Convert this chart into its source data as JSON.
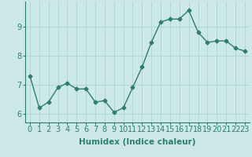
{
  "x": [
    0,
    1,
    2,
    3,
    4,
    5,
    6,
    7,
    8,
    9,
    10,
    11,
    12,
    13,
    14,
    15,
    16,
    17,
    18,
    19,
    20,
    21,
    22,
    23
  ],
  "y": [
    7.3,
    6.2,
    6.4,
    6.9,
    7.05,
    6.85,
    6.85,
    6.4,
    6.45,
    6.05,
    6.2,
    6.9,
    7.6,
    8.45,
    9.15,
    9.25,
    9.25,
    9.55,
    8.8,
    8.45,
    8.5,
    8.5,
    8.25,
    8.15
  ],
  "line_color": "#2e7d6e",
  "bg_color": "#cce9e8",
  "grid_color": "#aad4d2",
  "xlabel": "Humidex (Indice chaleur)",
  "ylabel": "",
  "title": "",
  "ylim": [
    5.7,
    9.85
  ],
  "xlim": [
    -0.5,
    23.5
  ],
  "yticks": [
    6,
    7,
    8,
    9
  ],
  "xticks": [
    0,
    1,
    2,
    3,
    4,
    5,
    6,
    7,
    8,
    9,
    10,
    11,
    12,
    13,
    14,
    15,
    16,
    17,
    18,
    19,
    20,
    21,
    22,
    23
  ],
  "marker": "D",
  "marker_size": 2.5,
  "line_width": 1.0,
  "font_size": 7,
  "xlabel_fontsize": 7.5
}
